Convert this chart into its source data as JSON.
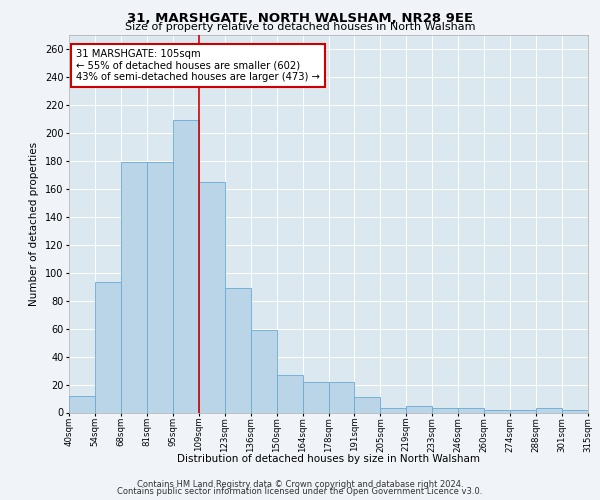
{
  "title": "31, MARSHGATE, NORTH WALSHAM, NR28 9EE",
  "subtitle": "Size of property relative to detached houses in North Walsham",
  "xlabel": "Distribution of detached houses by size in North Walsham",
  "ylabel": "Number of detached properties",
  "bar_heights": [
    12,
    93,
    179,
    179,
    209,
    165,
    89,
    59,
    27,
    22,
    22,
    11,
    3,
    5,
    3,
    3,
    2,
    2,
    3,
    2
  ],
  "bin_labels": [
    "40sqm",
    "54sqm",
    "68sqm",
    "81sqm",
    "95sqm",
    "109sqm",
    "123sqm",
    "136sqm",
    "150sqm",
    "164sqm",
    "178sqm",
    "191sqm",
    "205sqm",
    "219sqm",
    "233sqm",
    "246sqm",
    "260sqm",
    "274sqm",
    "288sqm",
    "301sqm",
    "315sqm"
  ],
  "bar_color": "#bad4e8",
  "bar_edge_color": "#6aaad4",
  "property_line_x": 5,
  "property_line_color": "#cc0000",
  "annotation_text": "31 MARSHGATE: 105sqm\n← 55% of detached houses are smaller (602)\n43% of semi-detached houses are larger (473) →",
  "annotation_box_color": "#ffffff",
  "annotation_box_edge": "#cc0000",
  "ylim": [
    0,
    270
  ],
  "yticks": [
    0,
    20,
    40,
    60,
    80,
    100,
    120,
    140,
    160,
    180,
    200,
    220,
    240,
    260
  ],
  "footer_line1": "Contains HM Land Registry data © Crown copyright and database right 2024.",
  "footer_line2": "Contains public sector information licensed under the Open Government Licence v3.0.",
  "bg_color": "#dce8f0",
  "plot_bg_color": "#dce8f0",
  "fig_bg_color": "#f0f4f8"
}
